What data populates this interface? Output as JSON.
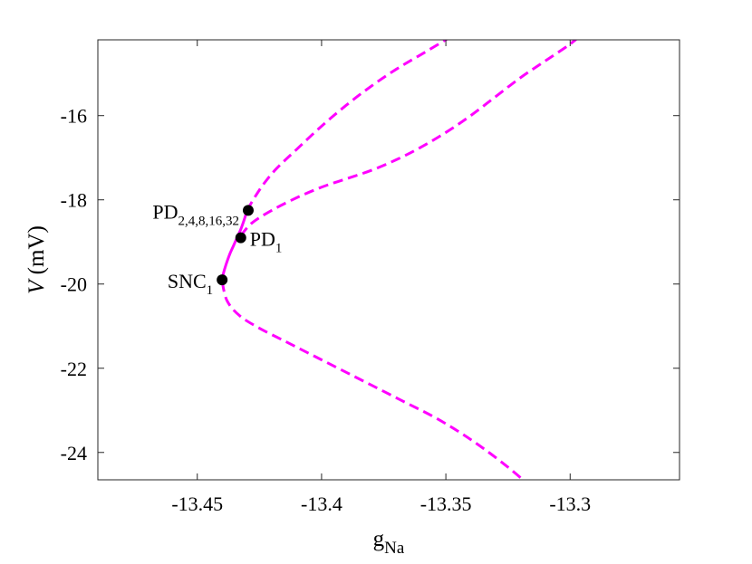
{
  "chart_data": {
    "type": "line",
    "xlabel": {
      "base": "g",
      "sub": "Na"
    },
    "ylabel": {
      "italic": "V",
      "rest": "(mV)"
    },
    "xlim": [
      -13.49,
      -13.256
    ],
    "ylim": [
      -24.65,
      -14.2
    ],
    "xticks": [
      -13.45,
      -13.4,
      -13.35,
      -13.3
    ],
    "xtick_labels": [
      "-13.45",
      "-13.4",
      "-13.35",
      "-13.3"
    ],
    "yticks": [
      -16,
      -18,
      -20,
      -22,
      -24
    ],
    "ytick_labels": [
      "-16",
      "-18",
      "-20",
      "-22",
      "-24"
    ],
    "grid": false,
    "line_color": "#ff00ff",
    "point_color": "#000000",
    "series": [
      {
        "style": "solid",
        "x": [
          -13.44,
          -13.4395,
          -13.4385,
          -13.437,
          -13.4355,
          -13.434,
          -13.4325,
          -13.431,
          -13.43
        ],
        "y": [
          -19.9,
          -19.75,
          -19.55,
          -19.3,
          -19.1,
          -18.9,
          -18.7,
          -18.45,
          -18.25
        ]
      },
      {
        "style": "dashed",
        "x": [
          -13.43,
          -13.427,
          -13.423,
          -13.418,
          -13.41,
          -13.4,
          -13.39,
          -13.38,
          -13.37,
          -13.36,
          -13.35,
          -13.344
        ],
        "y": [
          -18.25,
          -17.95,
          -17.6,
          -17.25,
          -16.8,
          -16.25,
          -15.75,
          -15.3,
          -14.9,
          -14.55,
          -14.2,
          -14.0
        ]
      },
      {
        "style": "dashed",
        "x": [
          -13.4325,
          -13.428,
          -13.42,
          -13.41,
          -13.4,
          -13.39,
          -13.38,
          -13.37,
          -13.36,
          -13.35,
          -13.34,
          -13.33,
          -13.32,
          -13.31,
          -13.3,
          -13.294
        ],
        "y": [
          -18.85,
          -18.55,
          -18.25,
          -17.95,
          -17.7,
          -17.5,
          -17.3,
          -17.05,
          -16.75,
          -16.4,
          -16.0,
          -15.55,
          -15.1,
          -14.7,
          -14.3,
          -14.0
        ]
      },
      {
        "style": "dashed",
        "x": [
          -13.44,
          -13.438,
          -13.433,
          -13.425,
          -13.415,
          -13.405,
          -13.395,
          -13.385,
          -13.375,
          -13.365,
          -13.355,
          -13.345,
          -13.335,
          -13.325,
          -13.318
        ],
        "y": [
          -19.95,
          -20.4,
          -20.75,
          -21.05,
          -21.35,
          -21.65,
          -21.95,
          -22.25,
          -22.55,
          -22.85,
          -23.15,
          -23.5,
          -23.9,
          -24.35,
          -24.7
        ]
      }
    ],
    "points": [
      {
        "label_main": "PD",
        "label_sub": "2,4,8,16,32",
        "x": -13.4295,
        "y": -18.25,
        "side": "left"
      },
      {
        "label_main": "PD",
        "label_sub": "1",
        "x": -13.4325,
        "y": -18.9,
        "side": "right"
      },
      {
        "label_main": "SNC",
        "label_sub": "1",
        "x": -13.44,
        "y": -19.9,
        "side": "left"
      }
    ]
  }
}
